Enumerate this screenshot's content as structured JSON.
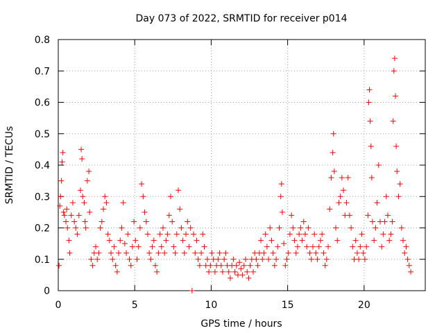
{
  "chart_data": {
    "type": "scatter",
    "title": "Day 073 of 2022, SRMTID for receiver p014",
    "xlabel": "GPS time / hours",
    "ylabel": "SRMTID / TECUs",
    "xlim": [
      0,
      24
    ],
    "ylim": [
      0,
      0.8
    ],
    "x_ticks": [
      0,
      5,
      10,
      15,
      20
    ],
    "x_tick_labels": [
      "0",
      "5",
      "10",
      "15",
      "20"
    ],
    "y_ticks": [
      0,
      0.1,
      0.2,
      0.3,
      0.4,
      0.5,
      0.6,
      0.7,
      0.8
    ],
    "y_tick_labels": [
      "0",
      "0.1",
      "0.2",
      "0.3",
      "0.4",
      "0.5",
      "0.6",
      "0.7",
      "0.8"
    ],
    "grid": true,
    "marker": "+",
    "colors": {
      "series": "#ff0000",
      "grid": "#a0a0a0",
      "axis": "#000000"
    },
    "series": [
      {
        "name": "SRMTID",
        "points": [
          [
            0.05,
            0.08
          ],
          [
            0.1,
            0.27
          ],
          [
            0.15,
            0.3
          ],
          [
            0.2,
            0.35
          ],
          [
            0.25,
            0.41
          ],
          [
            0.3,
            0.44
          ],
          [
            0.35,
            0.25
          ],
          [
            0.4,
            0.24
          ],
          [
            0.5,
            0.22
          ],
          [
            0.55,
            0.26
          ],
          [
            0.6,
            0.2
          ],
          [
            0.7,
            0.16
          ],
          [
            0.75,
            0.12
          ],
          [
            0.85,
            0.24
          ],
          [
            0.95,
            0.28
          ],
          [
            1.05,
            0.22
          ],
          [
            1.15,
            0.2
          ],
          [
            1.25,
            0.18
          ],
          [
            1.35,
            0.24
          ],
          [
            1.45,
            0.32
          ],
          [
            1.5,
            0.45
          ],
          [
            1.55,
            0.42
          ],
          [
            1.6,
            0.3
          ],
          [
            1.7,
            0.28
          ],
          [
            1.75,
            0.22
          ],
          [
            1.8,
            0.2
          ],
          [
            1.9,
            0.35
          ],
          [
            2.0,
            0.38
          ],
          [
            2.05,
            0.25
          ],
          [
            2.15,
            0.1
          ],
          [
            2.25,
            0.08
          ],
          [
            2.35,
            0.12
          ],
          [
            2.45,
            0.14
          ],
          [
            2.55,
            0.1
          ],
          [
            2.65,
            0.12
          ],
          [
            2.75,
            0.2
          ],
          [
            2.85,
            0.22
          ],
          [
            2.95,
            0.26
          ],
          [
            3.05,
            0.3
          ],
          [
            3.15,
            0.28
          ],
          [
            3.25,
            0.18
          ],
          [
            3.35,
            0.16
          ],
          [
            3.45,
            0.12
          ],
          [
            3.55,
            0.1
          ],
          [
            3.65,
            0.14
          ],
          [
            3.75,
            0.08
          ],
          [
            3.85,
            0.06
          ],
          [
            3.95,
            0.12
          ],
          [
            4.05,
            0.16
          ],
          [
            4.15,
            0.2
          ],
          [
            4.25,
            0.28
          ],
          [
            4.35,
            0.15
          ],
          [
            4.45,
            0.12
          ],
          [
            4.55,
            0.18
          ],
          [
            4.65,
            0.1
          ],
          [
            4.75,
            0.08
          ],
          [
            4.85,
            0.14
          ],
          [
            4.95,
            0.22
          ],
          [
            5.05,
            0.16
          ],
          [
            5.15,
            0.1
          ],
          [
            5.25,
            0.14
          ],
          [
            5.35,
            0.2
          ],
          [
            5.45,
            0.34
          ],
          [
            5.55,
            0.3
          ],
          [
            5.65,
            0.25
          ],
          [
            5.75,
            0.22
          ],
          [
            5.85,
            0.18
          ],
          [
            5.95,
            0.12
          ],
          [
            6.05,
            0.1
          ],
          [
            6.15,
            0.14
          ],
          [
            6.25,
            0.16
          ],
          [
            6.35,
            0.08
          ],
          [
            6.45,
            0.06
          ],
          [
            6.55,
            0.12
          ],
          [
            6.65,
            0.18
          ],
          [
            6.75,
            0.14
          ],
          [
            6.85,
            0.2
          ],
          [
            6.95,
            0.12
          ],
          [
            7.05,
            0.16
          ],
          [
            7.15,
            0.18
          ],
          [
            7.25,
            0.24
          ],
          [
            7.35,
            0.3
          ],
          [
            7.45,
            0.22
          ],
          [
            7.55,
            0.14
          ],
          [
            7.65,
            0.12
          ],
          [
            7.75,
            0.18
          ],
          [
            7.85,
            0.32
          ],
          [
            7.95,
            0.26
          ],
          [
            8.05,
            0.2
          ],
          [
            8.15,
            0.16
          ],
          [
            8.25,
            0.12
          ],
          [
            8.35,
            0.18
          ],
          [
            8.45,
            0.22
          ],
          [
            8.55,
            0.14
          ],
          [
            8.65,
            0.2
          ],
          [
            8.75,
            0.0
          ],
          [
            8.85,
            0.18
          ],
          [
            8.95,
            0.12
          ],
          [
            9.05,
            0.16
          ],
          [
            9.15,
            0.1
          ],
          [
            9.25,
            0.08
          ],
          [
            9.35,
            0.12
          ],
          [
            9.45,
            0.18
          ],
          [
            9.55,
            0.14
          ],
          [
            9.65,
            0.08
          ],
          [
            9.75,
            0.1
          ],
          [
            9.85,
            0.06
          ],
          [
            9.95,
            0.08
          ],
          [
            10.05,
            0.12
          ],
          [
            10.15,
            0.1
          ],
          [
            10.25,
            0.06
          ],
          [
            10.35,
            0.08
          ],
          [
            10.45,
            0.1
          ],
          [
            10.55,
            0.12
          ],
          [
            10.65,
            0.08
          ],
          [
            10.75,
            0.06
          ],
          [
            10.85,
            0.1
          ],
          [
            10.95,
            0.12
          ],
          [
            11.05,
            0.08
          ],
          [
            11.15,
            0.06
          ],
          [
            11.25,
            0.04
          ],
          [
            11.35,
            0.08
          ],
          [
            11.45,
            0.1
          ],
          [
            11.55,
            0.06
          ],
          [
            11.65,
            0.08
          ],
          [
            11.75,
            0.05
          ],
          [
            11.85,
            0.09
          ],
          [
            11.95,
            0.07
          ],
          [
            12.05,
            0.05
          ],
          [
            12.15,
            0.08
          ],
          [
            12.25,
            0.1
          ],
          [
            12.35,
            0.06
          ],
          [
            12.45,
            0.04
          ],
          [
            12.55,
            0.08
          ],
          [
            12.65,
            0.1
          ],
          [
            12.75,
            0.06
          ],
          [
            12.85,
            0.12
          ],
          [
            12.95,
            0.1
          ],
          [
            13.05,
            0.08
          ],
          [
            13.15,
            0.12
          ],
          [
            13.25,
            0.16
          ],
          [
            13.35,
            0.1
          ],
          [
            13.45,
            0.12
          ],
          [
            13.55,
            0.18
          ],
          [
            13.65,
            0.14
          ],
          [
            13.75,
            0.1
          ],
          [
            13.85,
            0.2
          ],
          [
            13.95,
            0.16
          ],
          [
            14.05,
            0.12
          ],
          [
            14.15,
            0.08
          ],
          [
            14.25,
            0.1
          ],
          [
            14.35,
            0.14
          ],
          [
            14.45,
            0.2
          ],
          [
            14.55,
            0.3
          ],
          [
            14.6,
            0.34
          ],
          [
            14.65,
            0.25
          ],
          [
            14.75,
            0.15
          ],
          [
            14.85,
            0.08
          ],
          [
            14.95,
            0.1
          ],
          [
            15.05,
            0.12
          ],
          [
            15.15,
            0.18
          ],
          [
            15.25,
            0.24
          ],
          [
            15.35,
            0.2
          ],
          [
            15.45,
            0.16
          ],
          [
            15.55,
            0.12
          ],
          [
            15.65,
            0.14
          ],
          [
            15.75,
            0.18
          ],
          [
            15.85,
            0.2
          ],
          [
            15.95,
            0.16
          ],
          [
            16.05,
            0.22
          ],
          [
            16.15,
            0.18
          ],
          [
            16.25,
            0.14
          ],
          [
            16.35,
            0.2
          ],
          [
            16.45,
            0.12
          ],
          [
            16.55,
            0.1
          ],
          [
            16.65,
            0.14
          ],
          [
            16.75,
            0.18
          ],
          [
            16.85,
            0.12
          ],
          [
            16.95,
            0.1
          ],
          [
            17.05,
            0.14
          ],
          [
            17.15,
            0.16
          ],
          [
            17.25,
            0.18
          ],
          [
            17.35,
            0.12
          ],
          [
            17.45,
            0.08
          ],
          [
            17.55,
            0.1
          ],
          [
            17.65,
            0.14
          ],
          [
            17.75,
            0.26
          ],
          [
            17.85,
            0.36
          ],
          [
            17.95,
            0.44
          ],
          [
            18.0,
            0.5
          ],
          [
            18.05,
            0.38
          ],
          [
            18.15,
            0.2
          ],
          [
            18.25,
            0.16
          ],
          [
            18.35,
            0.28
          ],
          [
            18.45,
            0.3
          ],
          [
            18.55,
            0.36
          ],
          [
            18.65,
            0.32
          ],
          [
            18.75,
            0.24
          ],
          [
            18.85,
            0.28
          ],
          [
            18.95,
            0.36
          ],
          [
            19.05,
            0.24
          ],
          [
            19.15,
            0.2
          ],
          [
            19.25,
            0.14
          ],
          [
            19.35,
            0.1
          ],
          [
            19.45,
            0.16
          ],
          [
            19.55,
            0.12
          ],
          [
            19.65,
            0.1
          ],
          [
            19.75,
            0.14
          ],
          [
            19.85,
            0.18
          ],
          [
            19.95,
            0.12
          ],
          [
            20.05,
            0.1
          ],
          [
            20.15,
            0.14
          ],
          [
            20.25,
            0.24
          ],
          [
            20.3,
            0.6
          ],
          [
            20.35,
            0.64
          ],
          [
            20.4,
            0.54
          ],
          [
            20.45,
            0.46
          ],
          [
            20.5,
            0.36
          ],
          [
            20.55,
            0.22
          ],
          [
            20.65,
            0.16
          ],
          [
            20.75,
            0.2
          ],
          [
            20.85,
            0.28
          ],
          [
            20.95,
            0.4
          ],
          [
            21.05,
            0.22
          ],
          [
            21.15,
            0.14
          ],
          [
            21.25,
            0.18
          ],
          [
            21.35,
            0.22
          ],
          [
            21.45,
            0.3
          ],
          [
            21.55,
            0.24
          ],
          [
            21.65,
            0.16
          ],
          [
            21.75,
            0.18
          ],
          [
            21.85,
            0.22
          ],
          [
            21.9,
            0.54
          ],
          [
            21.95,
            0.7
          ],
          [
            22.0,
            0.74
          ],
          [
            22.05,
            0.62
          ],
          [
            22.1,
            0.46
          ],
          [
            22.15,
            0.38
          ],
          [
            22.25,
            0.3
          ],
          [
            22.35,
            0.34
          ],
          [
            22.45,
            0.2
          ],
          [
            22.55,
            0.16
          ],
          [
            22.65,
            0.12
          ],
          [
            22.75,
            0.14
          ],
          [
            22.85,
            0.1
          ],
          [
            22.95,
            0.08
          ],
          [
            23.05,
            0.06
          ]
        ]
      }
    ]
  }
}
